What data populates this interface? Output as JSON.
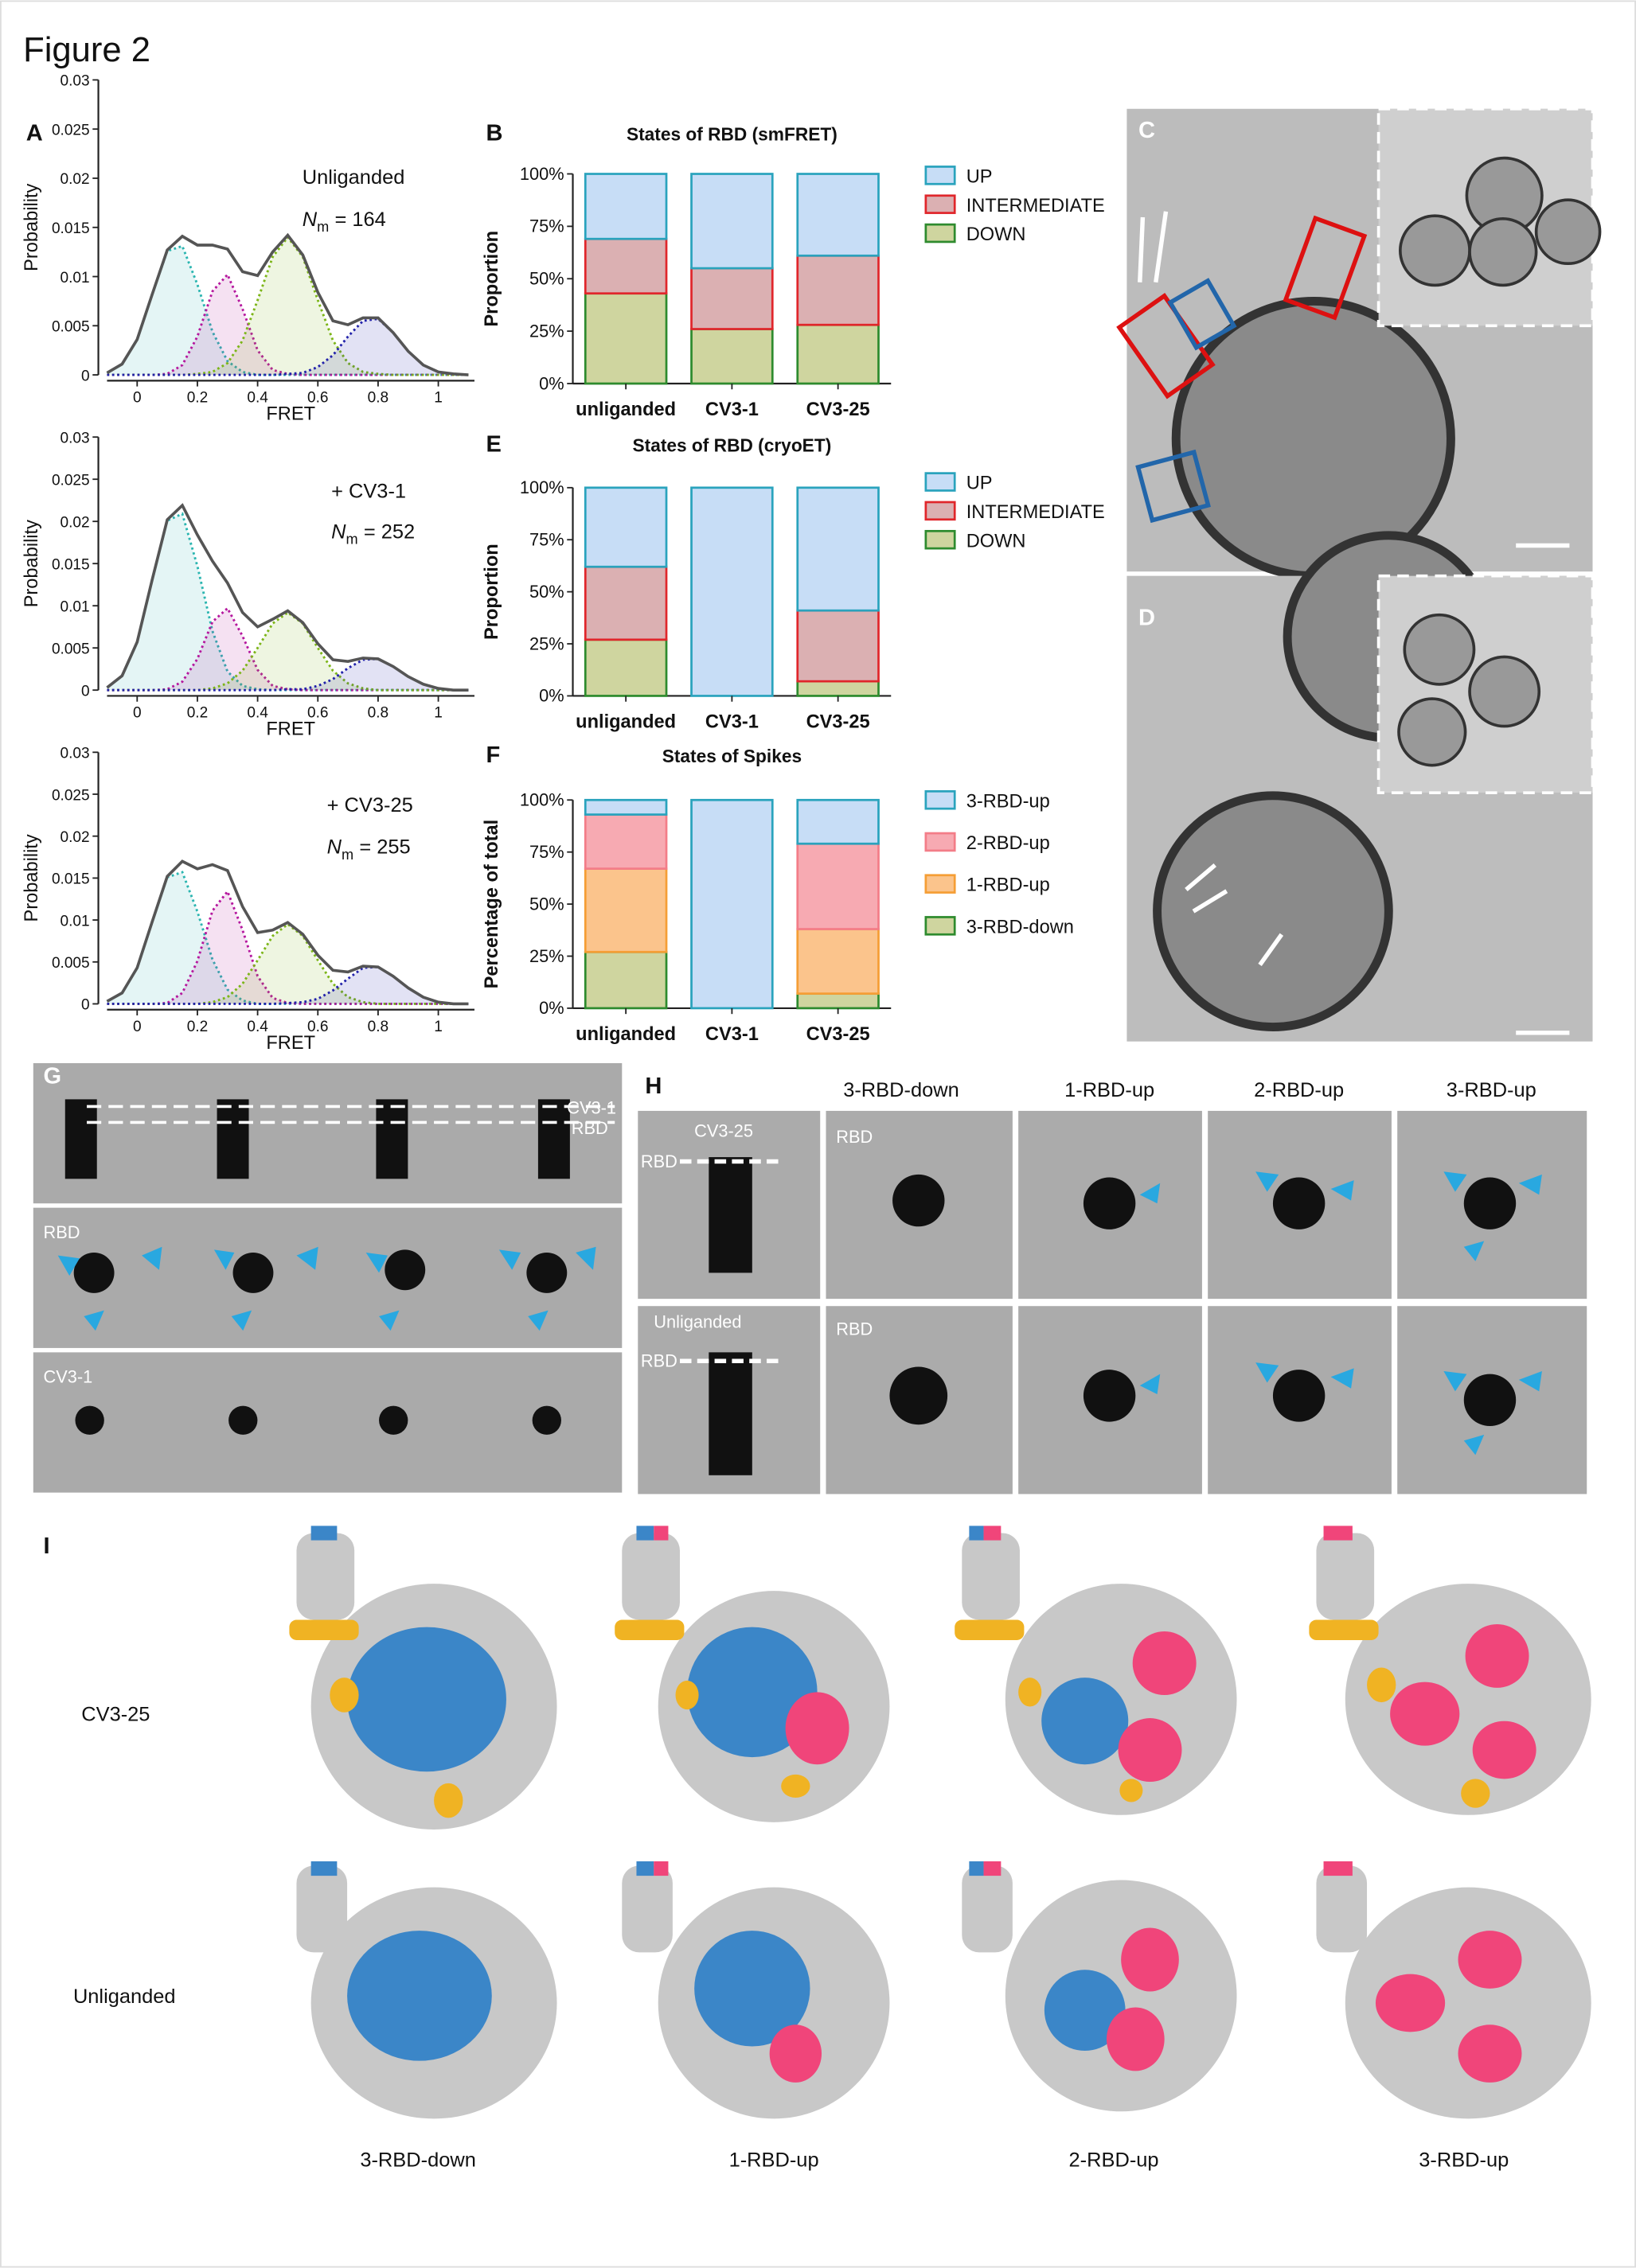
{
  "figure_title": "Figure 2",
  "panel_letters": [
    "A",
    "B",
    "C",
    "D",
    "E",
    "F",
    "G",
    "H",
    "I"
  ],
  "panel_g": {
    "labels": [
      "CV3-1",
      "RBD",
      "RBD",
      "CV3-1"
    ]
  },
  "panel_h": {
    "columns": [
      "3-RBD-down",
      "1-RBD-up",
      "2-RBD-up",
      "3-RBD-up"
    ],
    "rows": [
      {
        "label": "CV3-25",
        "side_label": "RBD",
        "top_label": "RBD"
      },
      {
        "label": "Unliganded",
        "side_label": "RBD",
        "top_label": "RBD"
      }
    ]
  },
  "panel_i": {
    "rows": [
      "CV3-25",
      "Unliganded"
    ],
    "columns": [
      "3-RBD-down",
      "1-RBD-up",
      "2-RBD-up",
      "3-RBD-up"
    ]
  },
  "chart_data": [
    {
      "type": "line",
      "xlabel": "FRET",
      "ylabel": "Probability",
      "annotation": "Unliganded",
      "n_label": {
        "symbol": "N",
        "subscript": "m",
        "text": "= 164"
      },
      "xlim": [
        -0.1,
        1.12
      ],
      "xticks": [
        0,
        0.2,
        0.4,
        0.6,
        0.8,
        1
      ],
      "ylim": [
        0,
        0.03
      ],
      "yticks": [
        0,
        0.005,
        0.01,
        0.015,
        0.02,
        0.025,
        0.03
      ],
      "x": [
        -0.1,
        -0.05,
        0,
        0.05,
        0.1,
        0.15,
        0.2,
        0.25,
        0.3,
        0.35,
        0.4,
        0.45,
        0.5,
        0.55,
        0.6,
        0.65,
        0.7,
        0.75,
        0.8,
        0.85,
        0.9,
        0.95,
        1.0,
        1.05,
        1.1
      ],
      "series": [
        {
          "color": "#2bb5b0",
          "style": "dotted",
          "fill": true,
          "values": [
            0.0002,
            0.0011,
            0.0036,
            0.0082,
            0.0126,
            0.0131,
            0.0092,
            0.0044,
            0.0014,
            0.0003,
            0,
            0,
            0,
            0,
            0,
            0,
            0,
            0,
            0,
            0,
            0,
            0,
            0,
            0,
            0
          ]
        },
        {
          "color": "#b5179e",
          "style": "dotted",
          "fill": true,
          "values": [
            0,
            0,
            0,
            0,
            0.0001,
            0.001,
            0.0039,
            0.0085,
            0.0102,
            0.0067,
            0.0025,
            0.0005,
            0.0001,
            0,
            0,
            0,
            0,
            0,
            0,
            0,
            0,
            0,
            0,
            0,
            0
          ]
        },
        {
          "color": "#7cb518",
          "style": "dotted",
          "fill": true,
          "values": [
            0,
            0,
            0,
            0,
            0,
            0,
            0.0001,
            0.0003,
            0.0012,
            0.0035,
            0.0076,
            0.012,
            0.014,
            0.012,
            0.0076,
            0.0035,
            0.0012,
            0.0003,
            0.0001,
            0,
            0,
            0,
            0,
            0,
            0
          ]
        },
        {
          "color": "#2222aa",
          "style": "dotted",
          "fill": true,
          "values": [
            0,
            0,
            0,
            0,
            0,
            0,
            0,
            0,
            0,
            0,
            0,
            0,
            0.0001,
            0.0002,
            0.0008,
            0.002,
            0.0039,
            0.0055,
            0.0057,
            0.0043,
            0.0024,
            0.001,
            0.0003,
            0.0001,
            0
          ]
        },
        {
          "color": "#555555",
          "style": "solid",
          "fill": false,
          "values": [
            0.0002,
            0.0011,
            0.0036,
            0.0082,
            0.0127,
            0.0141,
            0.0132,
            0.0132,
            0.0128,
            0.0105,
            0.0101,
            0.0125,
            0.0142,
            0.0122,
            0.0084,
            0.0055,
            0.0051,
            0.0058,
            0.0058,
            0.0043,
            0.0024,
            0.001,
            0.0003,
            0.0001,
            0
          ]
        }
      ]
    },
    {
      "type": "line",
      "xlabel": "FRET",
      "ylabel": "Probability",
      "annotation": "+ CV3-1",
      "n_label": {
        "symbol": "N",
        "subscript": "m",
        "text": "= 252"
      },
      "xlim": [
        -0.1,
        1.12
      ],
      "xticks": [
        0,
        0.2,
        0.4,
        0.6,
        0.8,
        1
      ],
      "ylim": [
        0,
        0.03
      ],
      "yticks": [
        0,
        0.005,
        0.01,
        0.015,
        0.02,
        0.025,
        0.03
      ],
      "x": [
        -0.1,
        -0.05,
        0,
        0.05,
        0.1,
        0.15,
        0.2,
        0.25,
        0.3,
        0.35,
        0.4,
        0.45,
        0.5,
        0.55,
        0.6,
        0.65,
        0.7,
        0.75,
        0.8,
        0.85,
        0.9,
        0.95,
        1.0,
        1.05,
        1.1
      ],
      "series": [
        {
          "color": "#2bb5b0",
          "style": "dotted",
          "fill": true,
          "values": [
            0.0003,
            0.0017,
            0.0057,
            0.0131,
            0.0201,
            0.0209,
            0.0147,
            0.007,
            0.0022,
            0.0005,
            0.0001,
            0,
            0,
            0,
            0,
            0,
            0,
            0,
            0,
            0,
            0,
            0,
            0,
            0,
            0
          ]
        },
        {
          "color": "#b5179e",
          "style": "dotted",
          "fill": true,
          "values": [
            0,
            0,
            0,
            0,
            0.0001,
            0.001,
            0.0037,
            0.0081,
            0.0097,
            0.0064,
            0.0024,
            0.0005,
            0.0001,
            0,
            0,
            0,
            0,
            0,
            0,
            0,
            0,
            0,
            0,
            0,
            0
          ]
        },
        {
          "color": "#7cb518",
          "style": "dotted",
          "fill": true,
          "values": [
            0,
            0,
            0,
            0,
            0,
            0,
            0,
            0.0002,
            0.0008,
            0.0023,
            0.005,
            0.0079,
            0.0092,
            0.0079,
            0.005,
            0.0023,
            0.0008,
            0.0002,
            0,
            0,
            0,
            0,
            0,
            0,
            0
          ]
        },
        {
          "color": "#2222aa",
          "style": "dotted",
          "fill": true,
          "values": [
            0,
            0,
            0,
            0,
            0,
            0,
            0,
            0,
            0,
            0,
            0,
            0,
            0.0001,
            0.0001,
            0.0005,
            0.0013,
            0.0026,
            0.0036,
            0.0037,
            0.0028,
            0.0016,
            0.0007,
            0.0002,
            0,
            0
          ]
        },
        {
          "color": "#555555",
          "style": "solid",
          "fill": false,
          "values": [
            0.0003,
            0.0017,
            0.0057,
            0.0131,
            0.0202,
            0.0219,
            0.0184,
            0.0153,
            0.0127,
            0.0092,
            0.0075,
            0.0084,
            0.0094,
            0.008,
            0.0055,
            0.0036,
            0.0034,
            0.0038,
            0.0037,
            0.0028,
            0.0016,
            0.0007,
            0.0002,
            0,
            0
          ]
        }
      ]
    },
    {
      "type": "line",
      "xlabel": "FRET",
      "ylabel": "Probability",
      "annotation": "+ CV3-25",
      "n_label": {
        "symbol": "N",
        "subscript": "m",
        "text": "= 255"
      },
      "xlim": [
        -0.1,
        1.12
      ],
      "xticks": [
        0,
        0.2,
        0.4,
        0.6,
        0.8,
        1
      ],
      "ylim": [
        0,
        0.03
      ],
      "yticks": [
        0,
        0.005,
        0.01,
        0.015,
        0.02,
        0.025,
        0.03
      ],
      "x": [
        -0.1,
        -0.05,
        0,
        0.05,
        0.1,
        0.15,
        0.2,
        0.25,
        0.3,
        0.35,
        0.4,
        0.45,
        0.5,
        0.55,
        0.6,
        0.65,
        0.7,
        0.75,
        0.8,
        0.85,
        0.9,
        0.95,
        1.0,
        1.05,
        1.1
      ],
      "series": [
        {
          "color": "#2bb5b0",
          "style": "dotted",
          "fill": true,
          "values": [
            0.0003,
            0.0013,
            0.0043,
            0.0098,
            0.0151,
            0.0157,
            0.011,
            0.0053,
            0.0017,
            0.0004,
            0,
            0,
            0,
            0,
            0,
            0,
            0,
            0,
            0,
            0,
            0,
            0,
            0,
            0,
            0
          ]
        },
        {
          "color": "#b5179e",
          "style": "dotted",
          "fill": true,
          "values": [
            0,
            0,
            0,
            0,
            0.0001,
            0.0013,
            0.0051,
            0.0111,
            0.0134,
            0.0088,
            0.0033,
            0.0007,
            0.0001,
            0,
            0,
            0,
            0,
            0,
            0,
            0,
            0,
            0,
            0,
            0,
            0
          ]
        },
        {
          "color": "#7cb518",
          "style": "dotted",
          "fill": true,
          "values": [
            0,
            0,
            0,
            0,
            0,
            0,
            0,
            0.0002,
            0.0008,
            0.0024,
            0.0052,
            0.0081,
            0.0095,
            0.0081,
            0.0052,
            0.0024,
            0.0008,
            0.0002,
            0,
            0,
            0,
            0,
            0,
            0,
            0
          ]
        },
        {
          "color": "#2222aa",
          "style": "dotted",
          "fill": true,
          "values": [
            0,
            0,
            0,
            0,
            0,
            0,
            0,
            0,
            0,
            0,
            0,
            0,
            0.0001,
            0.0002,
            0.0006,
            0.0016,
            0.003,
            0.0043,
            0.0044,
            0.0033,
            0.0019,
            0.0008,
            0.0002,
            0,
            0
          ]
        },
        {
          "color": "#555555",
          "style": "solid",
          "fill": false,
          "values": [
            0.0003,
            0.0013,
            0.0043,
            0.0098,
            0.0152,
            0.017,
            0.0161,
            0.0166,
            0.0159,
            0.0116,
            0.0085,
            0.0088,
            0.0097,
            0.0083,
            0.0058,
            0.004,
            0.0038,
            0.0045,
            0.0044,
            0.0033,
            0.0019,
            0.0008,
            0.0002,
            0,
            0
          ]
        }
      ]
    },
    {
      "type": "stacked_bar",
      "title": "States of RBD (smFRET)",
      "ylabel": "Proportion",
      "categories": [
        "unliganded",
        "CV3-1",
        "CV3-25"
      ],
      "ylim": [
        0,
        100
      ],
      "yticks": [
        {
          "value": 0,
          "label": "0%"
        },
        {
          "value": 25,
          "label": "25%"
        },
        {
          "value": 50,
          "label": "50%"
        },
        {
          "value": 75,
          "label": "75%"
        },
        {
          "value": 100,
          "label": "100%"
        }
      ],
      "series": [
        {
          "name": "DOWN",
          "color": "#cfd59f",
          "edge": "#2e8b2e",
          "values": [
            43,
            26,
            28
          ]
        },
        {
          "name": "INTERMEDIATE",
          "color": "#dbb0b2",
          "edge": "#e0262b",
          "values": [
            26,
            29,
            33
          ]
        },
        {
          "name": "UP",
          "color": "#c7ddf6",
          "edge": "#2aa3bd",
          "values": [
            31,
            45,
            39
          ]
        }
      ]
    },
    {
      "type": "stacked_bar",
      "title": "States of RBD (cryoET)",
      "ylabel": "Proportion",
      "categories": [
        "unliganded",
        "CV3-1",
        "CV3-25"
      ],
      "ylim": [
        0,
        100
      ],
      "yticks": [
        {
          "value": 0,
          "label": "0%"
        },
        {
          "value": 25,
          "label": "25%"
        },
        {
          "value": 50,
          "label": "50%"
        },
        {
          "value": 75,
          "label": "75%"
        },
        {
          "value": 100,
          "label": "100%"
        }
      ],
      "series": [
        {
          "name": "DOWN",
          "color": "#cfd59f",
          "edge": "#2e8b2e",
          "values": [
            27,
            0,
            7
          ]
        },
        {
          "name": "INTERMEDIATE",
          "color": "#dbb0b2",
          "edge": "#e0262b",
          "values": [
            35,
            0,
            34
          ]
        },
        {
          "name": "UP",
          "color": "#c7ddf6",
          "edge": "#2aa3bd",
          "values": [
            38,
            100,
            59
          ]
        }
      ]
    },
    {
      "type": "stacked_bar",
      "title": "States of Spikes",
      "ylabel": "Percentage of total",
      "categories": [
        "unliganded",
        "CV3-1",
        "CV3-25"
      ],
      "ylim": [
        0,
        100
      ],
      "yticks": [
        {
          "value": 0,
          "label": "0%"
        },
        {
          "value": 25,
          "label": "25%"
        },
        {
          "value": 50,
          "label": "50%"
        },
        {
          "value": 75,
          "label": "75%"
        },
        {
          "value": 100,
          "label": "100%"
        }
      ],
      "series": [
        {
          "name": "3-RBD-down",
          "color": "#cfd59f",
          "edge": "#2e8b2e",
          "values": [
            27,
            0,
            7
          ]
        },
        {
          "name": "1-RBD-up",
          "color": "#fbc48c",
          "edge": "#f59e35",
          "values": [
            40,
            0,
            31
          ]
        },
        {
          "name": "2-RBD-up",
          "color": "#f7aab2",
          "edge": "#f37d88",
          "values": [
            26,
            0,
            41
          ]
        },
        {
          "name": "3-RBD-up",
          "color": "#c7ddf6",
          "edge": "#2aa3bd",
          "values": [
            7,
            100,
            21
          ]
        }
      ]
    }
  ]
}
